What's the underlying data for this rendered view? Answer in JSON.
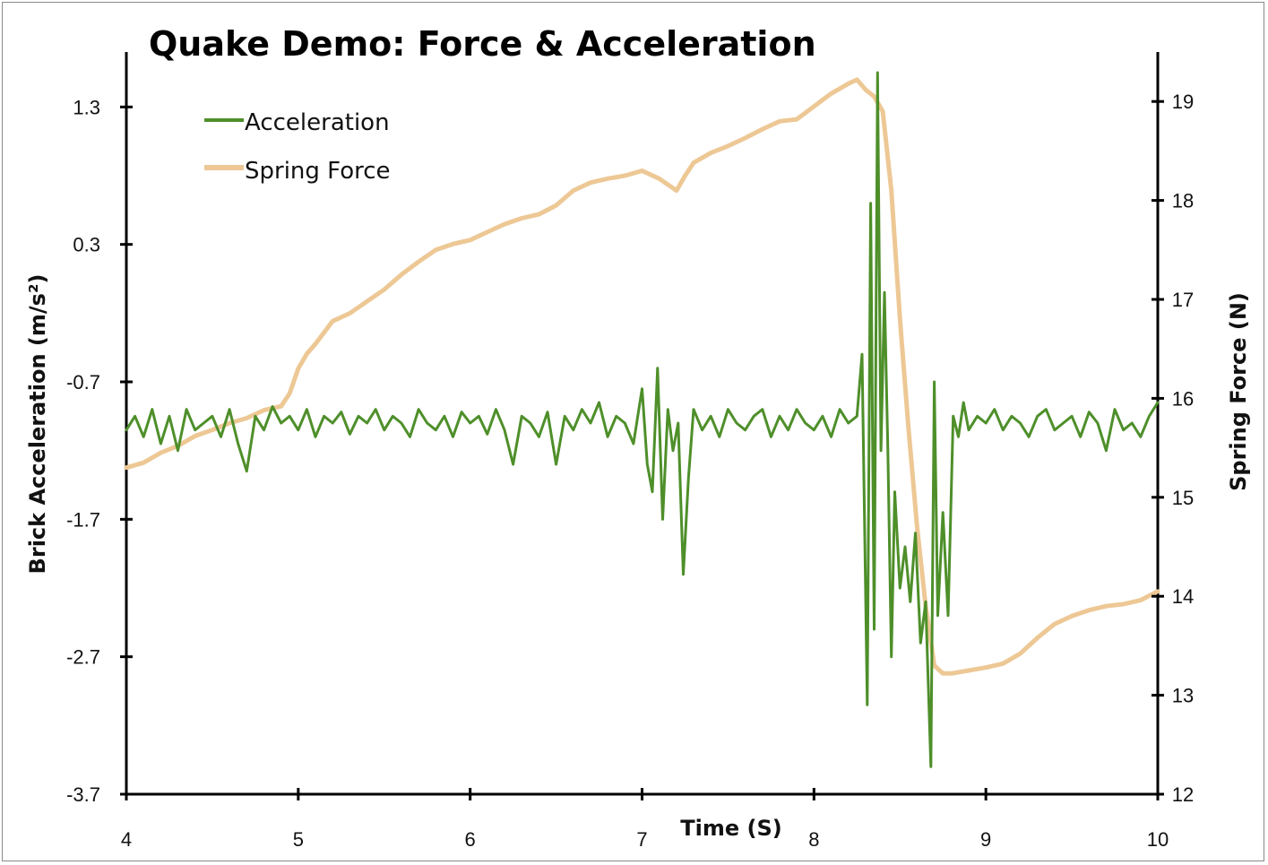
{
  "chart_data": {
    "type": "line",
    "title": "Quake Demo: Force & Acceleration",
    "xlabel": "Time (S)",
    "ylabel_left": "Brick Acceleration (m/s²)",
    "ylabel_right": "Spring Force (N)",
    "xlim": [
      4,
      10
    ],
    "ylim_left": [
      -3.7,
      1.7
    ],
    "ylim_right": [
      12,
      19.5
    ],
    "x_ticks": [
      "4",
      "5",
      "6",
      "7",
      "8",
      "9",
      "10"
    ],
    "y_ticks_left": [
      "1.3",
      "0.3",
      "-0.7",
      "-1.7",
      "-2.7",
      "-3.7"
    ],
    "y_ticks_right": [
      "19",
      "18",
      "17",
      "16",
      "15",
      "14",
      "13",
      "12"
    ],
    "legend_position": "top-left",
    "series": [
      {
        "name": "Acceleration",
        "axis": "left",
        "color": "#4e8f2a",
        "x": [
          4.0,
          4.05,
          4.1,
          4.15,
          4.2,
          4.25,
          4.3,
          4.35,
          4.4,
          4.45,
          4.5,
          4.55,
          4.6,
          4.65,
          4.7,
          4.75,
          4.8,
          4.85,
          4.9,
          4.95,
          5.0,
          5.05,
          5.1,
          5.15,
          5.2,
          5.25,
          5.3,
          5.35,
          5.4,
          5.45,
          5.5,
          5.55,
          5.6,
          5.65,
          5.7,
          5.75,
          5.8,
          5.85,
          5.9,
          5.95,
          6.0,
          6.05,
          6.1,
          6.15,
          6.2,
          6.25,
          6.3,
          6.35,
          6.4,
          6.45,
          6.5,
          6.55,
          6.6,
          6.65,
          6.7,
          6.75,
          6.8,
          6.85,
          6.9,
          6.95,
          7.0,
          7.03,
          7.06,
          7.09,
          7.12,
          7.15,
          7.18,
          7.21,
          7.24,
          7.27,
          7.3,
          7.35,
          7.4,
          7.45,
          7.5,
          7.55,
          7.6,
          7.65,
          7.7,
          7.75,
          7.8,
          7.85,
          7.9,
          7.95,
          8.0,
          8.05,
          8.1,
          8.15,
          8.2,
          8.25,
          8.28,
          8.31,
          8.33,
          8.35,
          8.37,
          8.39,
          8.41,
          8.43,
          8.45,
          8.47,
          8.5,
          8.53,
          8.56,
          8.59,
          8.62,
          8.65,
          8.68,
          8.7,
          8.72,
          8.75,
          8.78,
          8.81,
          8.84,
          8.87,
          8.9,
          8.95,
          9.0,
          9.05,
          9.1,
          9.15,
          9.2,
          9.25,
          9.3,
          9.35,
          9.4,
          9.45,
          9.5,
          9.55,
          9.6,
          9.65,
          9.7,
          9.75,
          9.8,
          9.85,
          9.9,
          9.95,
          10.0
        ],
        "y": [
          -1.05,
          -0.95,
          -1.1,
          -0.9,
          -1.15,
          -0.95,
          -1.2,
          -0.9,
          -1.05,
          -1.0,
          -0.95,
          -1.1,
          -0.9,
          -1.15,
          -1.35,
          -0.95,
          -1.05,
          -0.88,
          -1.0,
          -0.95,
          -1.05,
          -0.9,
          -1.1,
          -0.95,
          -1.0,
          -0.92,
          -1.08,
          -0.95,
          -1.0,
          -0.9,
          -1.05,
          -0.95,
          -1.0,
          -1.1,
          -0.9,
          -1.0,
          -1.05,
          -0.95,
          -1.1,
          -0.92,
          -1.0,
          -0.95,
          -1.08,
          -0.9,
          -1.05,
          -1.3,
          -0.95,
          -1.0,
          -1.1,
          -0.92,
          -1.3,
          -0.95,
          -1.05,
          -0.9,
          -1.0,
          -0.85,
          -1.1,
          -0.95,
          -1.0,
          -1.15,
          -0.75,
          -1.3,
          -1.5,
          -0.6,
          -1.7,
          -0.9,
          -1.2,
          -1.0,
          -2.1,
          -1.4,
          -0.9,
          -1.05,
          -0.95,
          -1.1,
          -0.9,
          -1.0,
          -1.05,
          -0.95,
          -0.9,
          -1.1,
          -0.95,
          -1.05,
          -0.9,
          -1.0,
          -1.05,
          -0.95,
          -1.1,
          -0.9,
          -1.0,
          -0.95,
          -0.5,
          -3.05,
          0.6,
          -2.5,
          1.55,
          -1.2,
          -0.05,
          -1.2,
          -2.7,
          -1.5,
          -2.2,
          -1.9,
          -2.3,
          -1.8,
          -2.6,
          -2.3,
          -3.5,
          -0.7,
          -2.4,
          -1.65,
          -2.4,
          -0.95,
          -1.1,
          -0.85,
          -1.05,
          -0.95,
          -1.0,
          -0.9,
          -1.05,
          -0.95,
          -1.0,
          -1.1,
          -0.95,
          -0.9,
          -1.05,
          -1.0,
          -0.95,
          -1.1,
          -0.92,
          -1.0,
          -1.2,
          -0.9,
          -1.05,
          -1.0,
          -1.1,
          -0.95,
          -0.85
        ]
      },
      {
        "name": "Spring Force",
        "axis": "right",
        "color": "#edc895",
        "x": [
          4.0,
          4.1,
          4.2,
          4.3,
          4.4,
          4.5,
          4.6,
          4.7,
          4.8,
          4.9,
          4.95,
          5.0,
          5.05,
          5.1,
          5.2,
          5.3,
          5.4,
          5.5,
          5.6,
          5.7,
          5.8,
          5.9,
          6.0,
          6.1,
          6.2,
          6.3,
          6.4,
          6.5,
          6.6,
          6.7,
          6.8,
          6.9,
          7.0,
          7.1,
          7.2,
          7.25,
          7.3,
          7.4,
          7.5,
          7.6,
          7.7,
          7.8,
          7.9,
          8.0,
          8.1,
          8.2,
          8.25,
          8.3,
          8.35,
          8.4,
          8.45,
          8.5,
          8.55,
          8.6,
          8.65,
          8.7,
          8.75,
          8.8,
          8.9,
          9.0,
          9.1,
          9.2,
          9.3,
          9.4,
          9.5,
          9.6,
          9.7,
          9.8,
          9.9,
          10.0
        ],
        "y": [
          15.3,
          15.35,
          15.45,
          15.52,
          15.62,
          15.68,
          15.75,
          15.8,
          15.88,
          15.92,
          16.05,
          16.3,
          16.45,
          16.55,
          16.78,
          16.86,
          16.98,
          17.1,
          17.25,
          17.38,
          17.5,
          17.56,
          17.6,
          17.68,
          17.76,
          17.82,
          17.86,
          17.95,
          18.1,
          18.18,
          18.22,
          18.25,
          18.3,
          18.22,
          18.1,
          18.25,
          18.38,
          18.48,
          18.55,
          18.63,
          18.72,
          18.8,
          18.82,
          18.95,
          19.08,
          19.18,
          19.22,
          19.12,
          19.05,
          18.9,
          18.1,
          16.8,
          15.7,
          14.7,
          13.9,
          13.3,
          13.22,
          13.22,
          13.25,
          13.28,
          13.32,
          13.42,
          13.58,
          13.72,
          13.8,
          13.86,
          13.9,
          13.92,
          13.96,
          14.05
        ]
      }
    ]
  }
}
